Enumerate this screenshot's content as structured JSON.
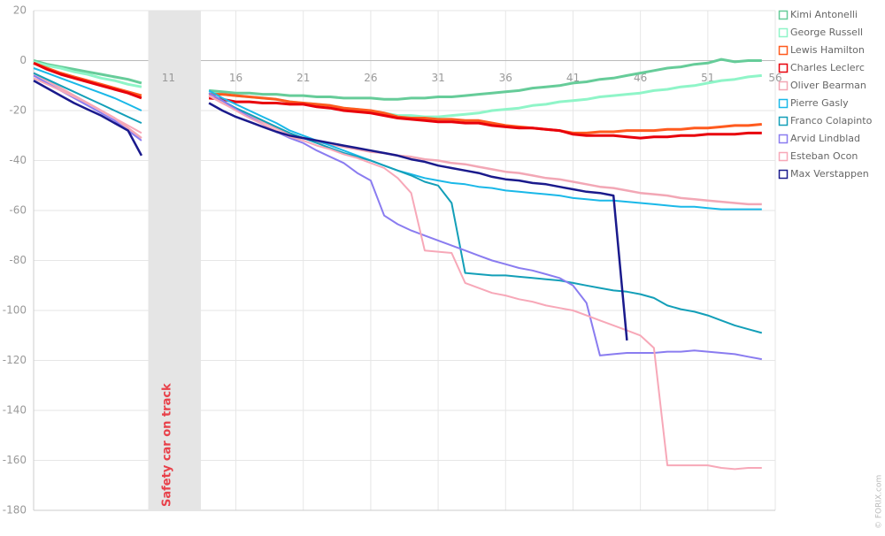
{
  "chart_data": {
    "type": "line",
    "credit": "© FORIX.com",
    "annotation": {
      "label": "Safety car on track",
      "from": 9.5,
      "to": 13.4,
      "color": "#e8414a"
    },
    "grid": true,
    "legend": "top-right",
    "x": [
      1,
      2,
      3,
      4,
      5,
      6,
      7,
      8,
      9,
      10,
      11,
      12,
      13,
      14,
      15,
      16,
      17,
      18,
      19,
      20,
      21,
      22,
      23,
      24,
      25,
      26,
      27,
      28,
      29,
      30,
      31,
      32,
      33,
      34,
      35,
      36,
      37,
      38,
      39,
      40,
      41,
      42,
      43,
      44,
      45,
      46,
      47,
      48,
      49,
      50,
      51,
      52,
      53,
      54,
      55
    ],
    "xlim": [
      1,
      56
    ],
    "xticks": [
      11,
      16,
      21,
      26,
      31,
      36,
      41,
      46,
      51,
      56
    ],
    "ylim": [
      -180,
      20
    ],
    "yticks": [
      20,
      0,
      -20,
      -40,
      -60,
      -80,
      -100,
      -120,
      -140,
      -160,
      -180
    ],
    "series": [
      {
        "name": "Kimi Antonelli",
        "color": "#66cc99",
        "width": 3,
        "values": [
          0,
          -1.5,
          -2.5,
          -3.5,
          -4.5,
          -5.5,
          -6.5,
          -7.5,
          -9,
          null,
          null,
          null,
          null,
          -12,
          -12.5,
          -13,
          -13,
          -13.5,
          -13.5,
          -14,
          -14,
          -14.5,
          -14.5,
          -15,
          -15,
          -15,
          -15.5,
          -15.5,
          -15,
          -15,
          -14.5,
          -14.5,
          -14,
          -13.5,
          -13,
          -12.5,
          -12,
          -11,
          -10.5,
          -10,
          -9,
          -8.5,
          -7.5,
          -7,
          -6,
          -5,
          -4,
          -3,
          -2.5,
          -1.5,
          -1,
          0.5,
          -0.5,
          0,
          0
        ]
      },
      {
        "name": "George Russell",
        "color": "#8ff5c8",
        "width": 3,
        "values": [
          -0.5,
          -2,
          -3,
          -4.5,
          -5.5,
          -7,
          -8,
          -9.5,
          -10.5,
          null,
          null,
          null,
          null,
          -13,
          -13.5,
          -14,
          -14.5,
          -15,
          -15.5,
          -16.5,
          -17,
          -17.5,
          -18,
          -19,
          -19.5,
          -20.5,
          -21,
          -22,
          -22,
          -22.5,
          -22.5,
          -22,
          -21.5,
          -21,
          -20,
          -19.5,
          -19,
          -18,
          -17.5,
          -16.5,
          -16,
          -15.5,
          -14.5,
          -14,
          -13.5,
          -13,
          -12,
          -11.5,
          -10.5,
          -10,
          -9,
          -8,
          -7.5,
          -6.5,
          -6
        ]
      },
      {
        "name": "Lewis Hamilton",
        "color": "#ff5a1e",
        "width": 3,
        "values": [
          -1,
          -3,
          -5,
          -6.5,
          -8,
          -9.5,
          -11,
          -12.5,
          -14,
          null,
          null,
          null,
          null,
          -13.5,
          -13.5,
          -14,
          -14.5,
          -15,
          -15.5,
          -16.5,
          -17,
          -17.5,
          -18,
          -19,
          -19.5,
          -20,
          -21,
          -22.5,
          -23,
          -23,
          -23.5,
          -23.5,
          -24,
          -24,
          -25,
          -26,
          -26.5,
          -27,
          -27.5,
          -28,
          -29,
          -29,
          -28.5,
          -28.5,
          -28,
          -28,
          -28,
          -27.5,
          -27.5,
          -27,
          -27,
          -26.5,
          -26,
          -26,
          -25.5
        ]
      },
      {
        "name": "Charles Leclerc",
        "color": "#e8000b",
        "width": 3,
        "values": [
          -1,
          -3.5,
          -5.5,
          -7,
          -8.5,
          -10,
          -11.5,
          -13,
          -15,
          null,
          null,
          null,
          null,
          -15,
          -15.5,
          -16.5,
          -16.5,
          -17,
          -17,
          -17.5,
          -17.5,
          -18.5,
          -19,
          -20,
          -20.5,
          -21,
          -22,
          -23,
          -23.5,
          -24,
          -24.5,
          -24.5,
          -25,
          -25,
          -26,
          -26.5,
          -27,
          -27,
          -27.5,
          -28,
          -29.5,
          -30,
          -30,
          -30,
          -30.5,
          -31,
          -30.5,
          -30.5,
          -30,
          -30,
          -29.5,
          -29.5,
          -29.5,
          -29,
          -29
        ]
      },
      {
        "name": "Oliver Bearman",
        "color": "#f2a7b5",
        "width": 2.5,
        "values": [
          -5,
          -8,
          -11,
          -14,
          -17,
          -20,
          -23,
          -27,
          -31,
          null,
          null,
          null,
          null,
          -14,
          -17,
          -19.5,
          -22,
          -24.5,
          -27,
          -29.5,
          -31,
          -32.5,
          -33.5,
          -34.5,
          -35.5,
          -36.5,
          -37,
          -38,
          -38.5,
          -39.5,
          -40,
          -41,
          -41.5,
          -42.5,
          -43.5,
          -44.5,
          -45,
          -46,
          -47,
          -47.5,
          -48.5,
          -49.5,
          -50.5,
          -51,
          -52,
          -53,
          -53.5,
          -54,
          -55,
          -55.5,
          -56,
          -56.5,
          -57,
          -57.5,
          -57.5
        ]
      },
      {
        "name": "Pierre Gasly",
        "color": "#1ab8e8",
        "width": 2,
        "values": [
          -3,
          -5,
          -7,
          -9,
          -11,
          -13,
          -15,
          -17.5,
          -20,
          null,
          null,
          null,
          null,
          -12,
          -15,
          -17.5,
          -20,
          -22.5,
          -25,
          -28,
          -30,
          -32,
          -34,
          -36,
          -38,
          -40,
          -42,
          -44,
          -45.5,
          -47,
          -48,
          -49,
          -49.5,
          -50.5,
          -51,
          -52,
          -52.5,
          -53,
          -53.5,
          -54,
          -55,
          -55.5,
          -56,
          -56,
          -56.5,
          -57,
          -57.5,
          -58,
          -58.5,
          -58.5,
          -59,
          -59.5,
          -59.5,
          -59.5,
          -59.5
        ]
      },
      {
        "name": "Franco Colapinto",
        "color": "#139fb8",
        "width": 2,
        "values": [
          -5,
          -7.5,
          -10,
          -12.5,
          -15,
          -17.5,
          -20,
          -22.5,
          -25,
          null,
          null,
          null,
          null,
          -13,
          -16,
          -19,
          -21.5,
          -24,
          -26.5,
          -29,
          -31,
          -33,
          -35,
          -37,
          -38.5,
          -40,
          -42,
          -44,
          -46,
          -48.5,
          -50,
          -57,
          -85,
          -85.5,
          -86,
          -86,
          -86.5,
          -87,
          -87.5,
          -88,
          -89,
          -90,
          -91,
          -92,
          -92.5,
          -93.5,
          -95,
          -98,
          -99.5,
          -100.5,
          -102,
          -104,
          -106,
          -107.5,
          -109
        ]
      },
      {
        "name": "Arvid Lindblad",
        "color": "#8a7cf0",
        "width": 2,
        "values": [
          -6,
          -9,
          -12,
          -15,
          -18,
          -21,
          -24,
          -28,
          -32,
          null,
          null,
          null,
          null,
          -13,
          -16,
          -19.5,
          -22.5,
          -25.5,
          -28.5,
          -31,
          -33,
          -36,
          -38.5,
          -41,
          -45,
          -48,
          -62,
          -65.5,
          -68,
          -70,
          -72,
          -74,
          -76,
          -78,
          -80,
          -81.5,
          -83,
          -84,
          -85.5,
          -87,
          -90,
          -97,
          -118,
          -117.5,
          -117,
          -117,
          -117,
          -116.5,
          -116.5,
          -116,
          -116.5,
          -117,
          -117.5,
          -118.5,
          -119.5
        ]
      },
      {
        "name": "Esteban Ocon",
        "color": "#f7a8b8",
        "width": 2,
        "values": [
          -7,
          -9.5,
          -12,
          -14.5,
          -17,
          -20,
          -23,
          -26,
          -29,
          null,
          null,
          null,
          null,
          -14,
          -17,
          -20,
          -23,
          -25.5,
          -28,
          -30.5,
          -32,
          -34,
          -35.5,
          -37.5,
          -39,
          -41,
          -43,
          -47,
          -53,
          -76,
          -76.5,
          -77,
          -89,
          -91,
          -93,
          -94,
          -95.5,
          -96.5,
          -98,
          -99,
          -100,
          -102,
          -104,
          -106,
          -108,
          -110,
          -115,
          -162,
          -162,
          -162,
          -162,
          -163,
          -163.5,
          -163,
          -163
        ]
      },
      {
        "name": "Max Verstappen",
        "color": "#1a1a8c",
        "width": 2.5,
        "values": [
          -8,
          -11,
          -14,
          -17,
          -19.5,
          -22,
          -25,
          -28,
          -38,
          null,
          null,
          null,
          null,
          -17,
          -20,
          -22.5,
          -24.5,
          -26.5,
          -28.5,
          -30,
          -31,
          -32,
          -33,
          -34,
          -35,
          -36,
          -37,
          -38,
          -39.5,
          -40.5,
          -42,
          -43,
          -44,
          -45,
          -46.5,
          -47.5,
          -48,
          -49,
          -49.5,
          -50.5,
          -51.5,
          -52.5,
          -53,
          -54,
          -112,
          null,
          null,
          null,
          null,
          null,
          null,
          null,
          null,
          null,
          null
        ]
      }
    ]
  }
}
